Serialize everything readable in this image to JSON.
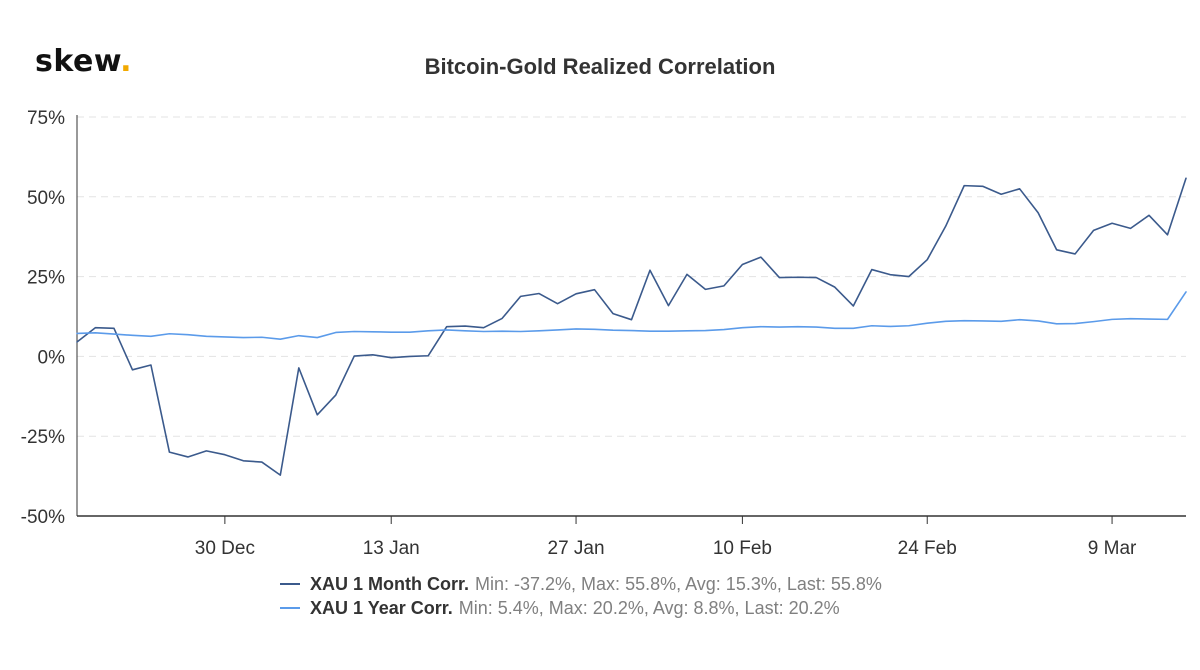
{
  "brand": {
    "name": "skew",
    "dot": "."
  },
  "chart_data": {
    "type": "line",
    "title": "Bitcoin-Gold Realized Correlation",
    "xlabel": "",
    "ylabel": "",
    "ylim": [
      -50,
      75
    ],
    "y_ticks": [
      {
        "value": 75,
        "label": "75%"
      },
      {
        "value": 50,
        "label": "50%"
      },
      {
        "value": 25,
        "label": "25%"
      },
      {
        "value": 0,
        "label": "0%"
      },
      {
        "value": -25,
        "label": "-25%"
      },
      {
        "value": -50,
        "label": "-50%"
      }
    ],
    "x_ticks": [
      {
        "index": 8,
        "label": "30 Dec"
      },
      {
        "index": 17,
        "label": "13 Jan"
      },
      {
        "index": 27,
        "label": "27 Jan"
      },
      {
        "index": 36,
        "label": "10 Feb"
      },
      {
        "index": 46,
        "label": "24 Feb"
      },
      {
        "index": 56,
        "label": "9 Mar"
      }
    ],
    "grid": true,
    "legend_position": "bottom",
    "series": [
      {
        "name": "XAU 1 Month Corr.",
        "stats": "Min: -37.2%, Max: 55.8%, Avg: 15.3%, Last: 55.8%",
        "color": "#3b5a8c",
        "values": [
          4.5,
          9.0,
          8.8,
          -4.2,
          -2.7,
          -30.0,
          -31.5,
          -29.6,
          -30.8,
          -32.7,
          -33.1,
          -37.2,
          -3.6,
          -18.3,
          -12.1,
          0.1,
          0.5,
          -0.4,
          0.0,
          0.2,
          9.3,
          9.5,
          9.0,
          11.9,
          18.8,
          19.7,
          16.5,
          19.6,
          20.9,
          13.4,
          11.5,
          27.0,
          15.9,
          25.7,
          21.0,
          22.1,
          28.8,
          31.1,
          24.7,
          24.8,
          24.7,
          21.7,
          15.8,
          27.2,
          25.6,
          25.0,
          30.3,
          40.8,
          53.5,
          53.3,
          50.8,
          52.5,
          45.0,
          33.4,
          32.1,
          39.5,
          41.7,
          40.1,
          44.2,
          38.1,
          55.8
        ]
      },
      {
        "name": "XAU 1 Year Corr.",
        "stats": "Min: 5.4%, Max: 20.2%, Avg: 8.8%, Last: 20.2%",
        "color": "#5b9bea",
        "values": [
          7.2,
          7.4,
          7.0,
          6.6,
          6.3,
          7.1,
          6.8,
          6.3,
          6.1,
          5.9,
          6.0,
          5.4,
          6.5,
          5.9,
          7.5,
          7.8,
          7.7,
          7.6,
          7.6,
          8.0,
          8.3,
          8.0,
          7.8,
          7.9,
          7.8,
          8.0,
          8.3,
          8.6,
          8.5,
          8.2,
          8.1,
          7.9,
          7.9,
          8.0,
          8.1,
          8.4,
          9.0,
          9.3,
          9.2,
          9.3,
          9.2,
          8.8,
          8.8,
          9.6,
          9.4,
          9.6,
          10.4,
          11.0,
          11.2,
          11.1,
          11.0,
          11.5,
          11.1,
          10.2,
          10.3,
          10.9,
          11.6,
          11.8,
          11.7,
          11.6,
          20.2
        ]
      }
    ]
  }
}
